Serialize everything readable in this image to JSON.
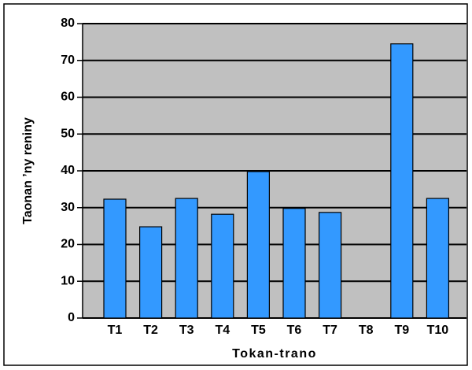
{
  "chart_data": {
    "type": "bar",
    "x_label": "Tokan-trano",
    "y_label": "Taonan ’ny reniny",
    "categories": [
      "T1",
      "T2",
      "T3",
      "T4",
      "T5",
      "T6",
      "T7",
      "T8",
      "T9",
      "T10"
    ],
    "values": [
      32.3,
      24.8,
      32.5,
      28.2,
      39.8,
      29.8,
      28.7,
      null,
      74.5,
      32.5
    ],
    "color": "#3399ff",
    "ylim": [
      0,
      80
    ],
    "yticks": [
      0,
      10,
      20,
      30,
      40,
      50,
      60,
      70,
      80
    ],
    "grid": true
  }
}
